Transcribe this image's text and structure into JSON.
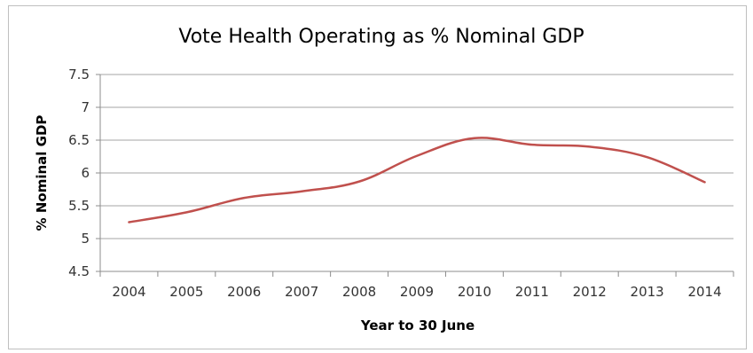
{
  "chart_data": {
    "type": "line",
    "title": "Vote Health Operating as % Nominal GDP",
    "xlabel": "Year to 30 June",
    "ylabel": "% Nominal GDP",
    "categories": [
      "2004",
      "2005",
      "2006",
      "2007",
      "2008",
      "2009",
      "2010",
      "2011",
      "2012",
      "2013",
      "2014"
    ],
    "yticks": [
      "4.5",
      "5",
      "5.5",
      "6",
      "6.5",
      "7",
      "7.5"
    ],
    "ylim": [
      4.5,
      7.5
    ],
    "grid": true,
    "legend": "none",
    "series": [
      {
        "values": [
          5.25,
          5.4,
          5.62,
          5.72,
          5.87,
          6.26,
          6.53,
          6.43,
          6.4,
          6.24,
          5.86
        ],
        "color": "#c0504d"
      }
    ],
    "colors": {
      "gridline": "#a6a6a6",
      "axis": "#8c8c8c"
    }
  }
}
